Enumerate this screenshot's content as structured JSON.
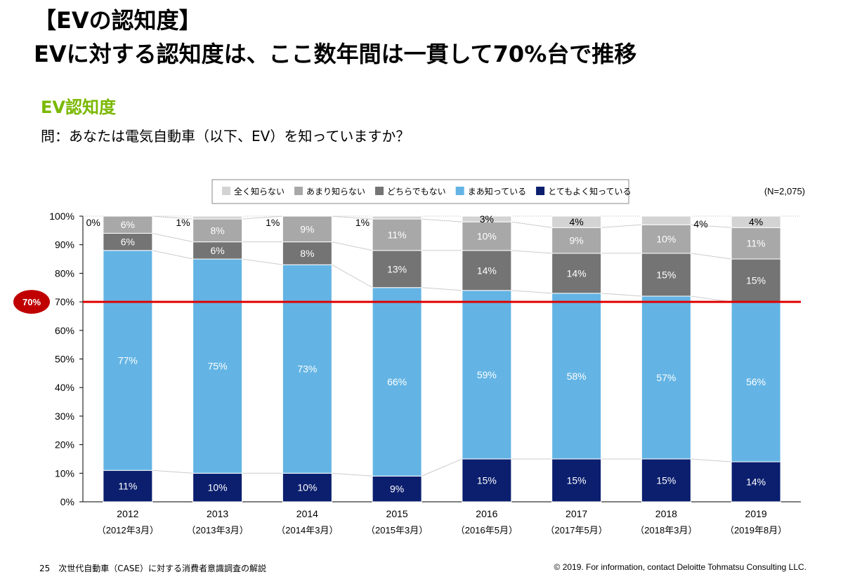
{
  "header": {
    "line1": "【EVの認知度】",
    "line2": "EVに対する認知度は、ここ数年間は一貫して70%台で推移"
  },
  "subtitle": "EV認知度",
  "question": "問：あなたは電気自動車（以下、EV）を知っていますか？",
  "footer": {
    "left": "25　次世代自動車（CASE）に対する消費者意識調査の解説",
    "right": "© 2019. For information, contact Deloitte Tohmatsu Consulting LLC."
  },
  "chart_data": {
    "type": "bar",
    "stacked": true,
    "note": "(N=2,075)",
    "categories": [
      "2012",
      "2013",
      "2014",
      "2015",
      "2016",
      "2017",
      "2018",
      "2019"
    ],
    "category_sublabels": [
      "（2012年3月）",
      "（2013年3月）",
      "（2014年3月）",
      "（2015年3月）",
      "（2016年5月）",
      "（2017年5月）",
      "（2018年3月）",
      "（2019年8月）"
    ],
    "ylim": [
      0,
      100
    ],
    "yticks": [
      "0%",
      "10%",
      "20%",
      "30%",
      "40%",
      "50%",
      "60%",
      "70%",
      "80%",
      "90%",
      "100%"
    ],
    "legend_position": "top",
    "reference_line": {
      "value": 70,
      "label": "70%",
      "color": "#e00000"
    },
    "series": [
      {
        "name": "とてもよく知っている",
        "color": "#0b1f6e",
        "values": [
          11,
          10,
          10,
          9,
          15,
          15,
          15,
          14
        ]
      },
      {
        "name": "まあ知っている",
        "color": "#63b4e4",
        "values": [
          77,
          75,
          73,
          66,
          59,
          58,
          57,
          56
        ]
      },
      {
        "name": "どちらでもない",
        "color": "#747474",
        "values": [
          6,
          6,
          8,
          13,
          14,
          14,
          15,
          15
        ]
      },
      {
        "name": "あまり知らない",
        "color": "#a8a8a8",
        "values": [
          6,
          8,
          9,
          11,
          10,
          9,
          10,
          11
        ]
      },
      {
        "name": "全く知らない",
        "color": "#d3d3d3",
        "values": [
          0,
          1,
          1,
          1,
          3,
          4,
          4,
          4
        ]
      }
    ],
    "legend_order": [
      "全く知らない",
      "あまり知らない",
      "どちらでもない",
      "まあ知っている",
      "とてもよく知っている"
    ]
  }
}
